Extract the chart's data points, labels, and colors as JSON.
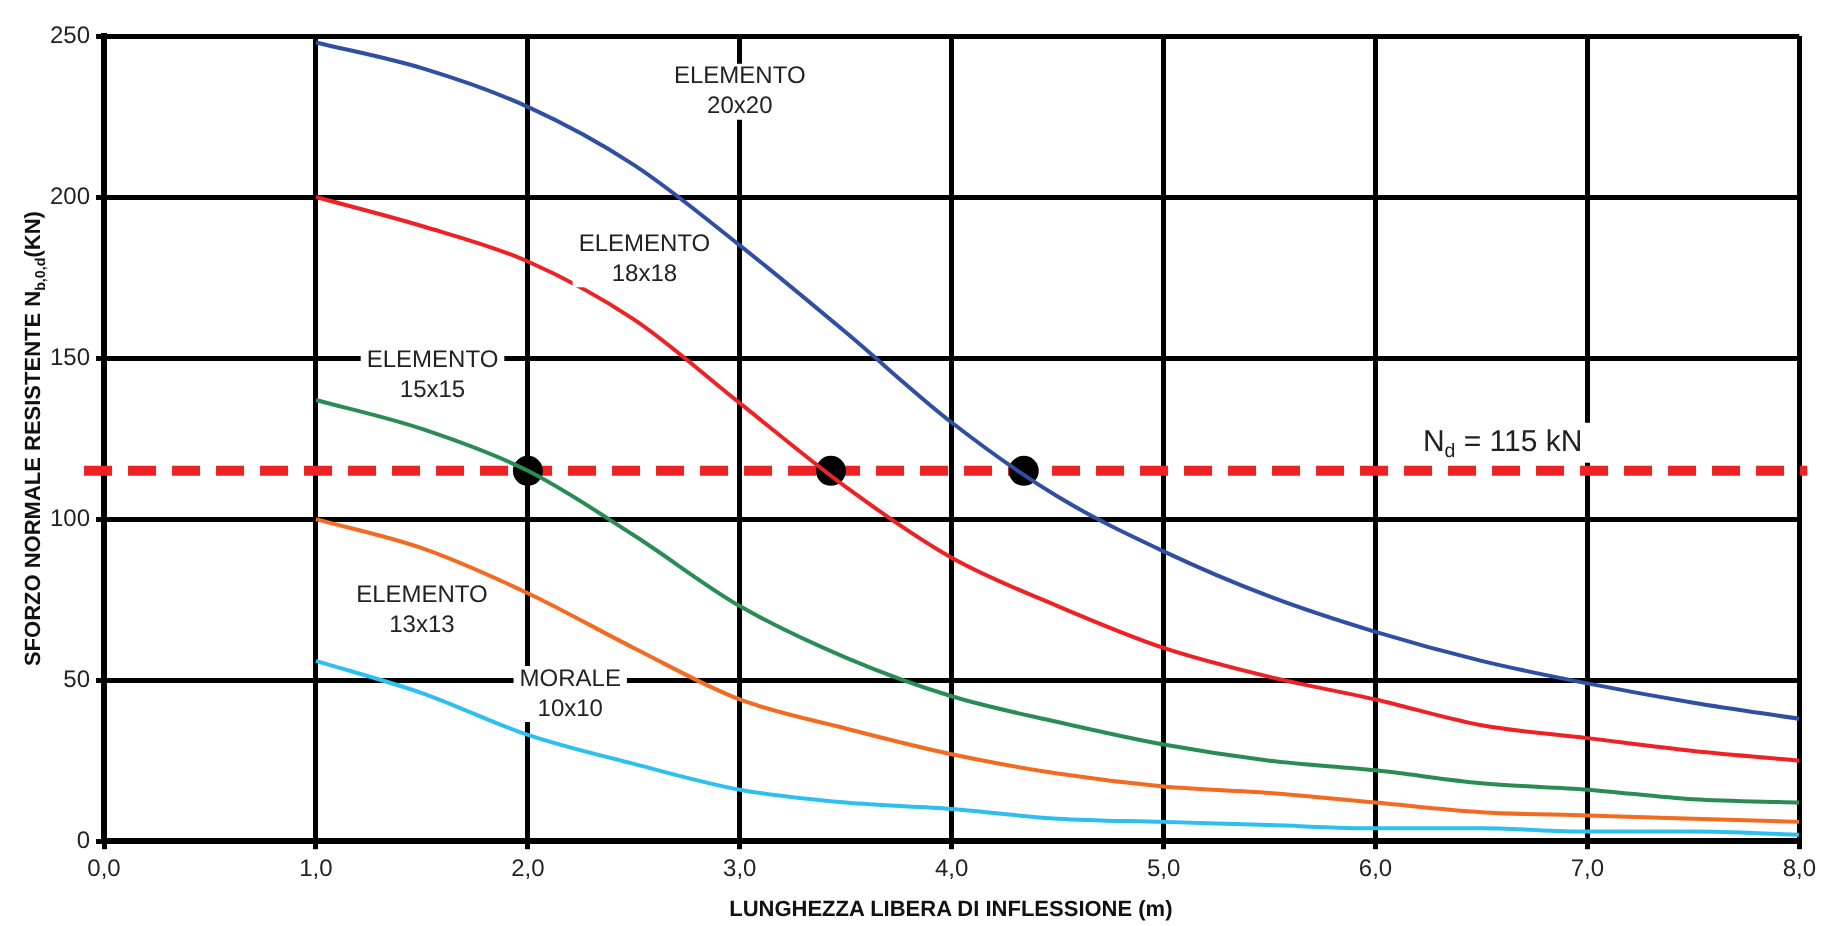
{
  "chart_data": {
    "type": "line",
    "xlabel": "LUNGHEZZA LIBERA DI INFLESSIONE (m)",
    "ylabel": "SFORZO NORMALE RESISTENTE N$_{b,0,d}$(KN)",
    "x": [
      1,
      1.5,
      2,
      2.5,
      3,
      3.5,
      4,
      4.5,
      5,
      5.5,
      6,
      6.5,
      7,
      7.5,
      8
    ],
    "xlim": [
      0,
      8
    ],
    "xticks": [
      {
        "value": 0,
        "label": "0,0"
      },
      {
        "value": 1,
        "label": "1,0"
      },
      {
        "value": 2,
        "label": "2,0"
      },
      {
        "value": 3,
        "label": "3,0"
      },
      {
        "value": 4,
        "label": "4,0"
      },
      {
        "value": 5,
        "label": "5,0"
      },
      {
        "value": 6,
        "label": "6,0"
      },
      {
        "value": 7,
        "label": "7,0"
      },
      {
        "value": 8,
        "label": "8,0"
      }
    ],
    "ylim": [
      0,
      250
    ],
    "yticks": [
      0,
      50,
      100,
      150,
      200,
      250
    ],
    "grid": true,
    "marker": "none",
    "series": [
      {
        "name": "ELEMENTO 20x20",
        "color": "#2e4fa3",
        "values": [
          248,
          240,
          228,
          210,
          185,
          158,
          130,
          107,
          90,
          76,
          65,
          56,
          49,
          43,
          38
        ]
      },
      {
        "name": "ELEMENTO 18x18",
        "color": "#ee2224",
        "values": [
          200,
          191,
          180,
          162,
          136,
          110,
          88,
          73,
          60,
          51,
          44,
          36,
          32,
          28,
          25
        ]
      },
      {
        "name": "ELEMENTO 15x15",
        "color": "#2a8c55",
        "values": [
          137,
          128,
          115,
          95,
          73,
          57,
          45,
          37,
          30,
          25,
          22,
          18,
          16,
          13,
          12
        ]
      },
      {
        "name": "ELEMENTO 13x13",
        "color": "#f26b21",
        "values": [
          100,
          91,
          77,
          60,
          44,
          35,
          27,
          21,
          17,
          15,
          12,
          9,
          8,
          7,
          6
        ]
      },
      {
        "name": "MORALE 10x10",
        "color": "#2dbfef",
        "values": [
          56,
          46,
          33,
          24,
          16,
          12,
          10,
          7,
          6,
          5,
          4,
          4,
          3,
          3,
          2
        ]
      },
      {
        "type": "scatter",
        "marker": "circle",
        "color": "#000000",
        "x": [
          2.0,
          3.43,
          4.34
        ],
        "values": [
          115,
          115,
          115
        ]
      }
    ],
    "ref_lines": [
      {
        "axis": "y",
        "value": 115,
        "label": "N$_{d}$ = 115 kN",
        "color": "#ee2224",
        "line_style": "dashed"
      }
    ]
  }
}
